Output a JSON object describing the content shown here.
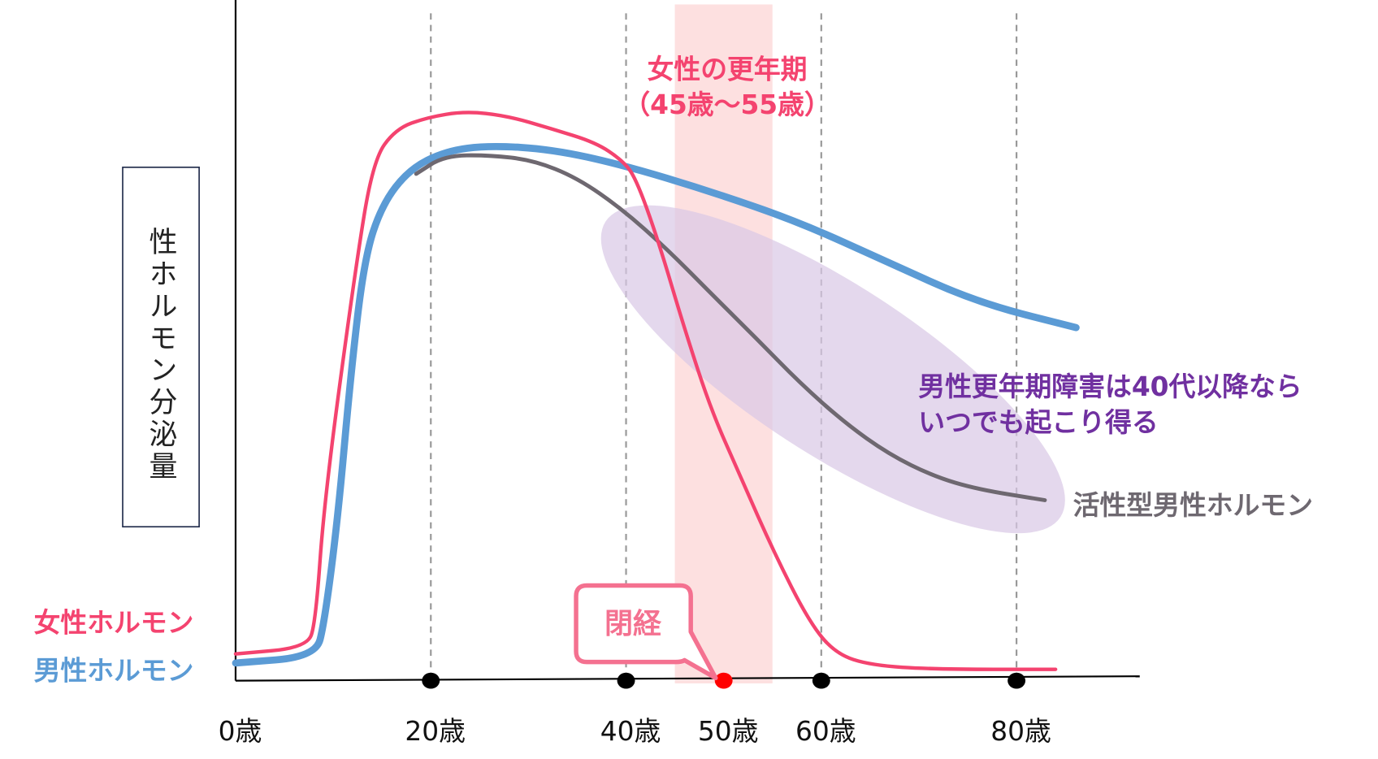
{
  "colors": {
    "female": "#f4436f",
    "male": "#5b9bd5",
    "active": "#6e6870",
    "band": "#fde0e0",
    "ellipse": "#d8c8e6",
    "note": "#7030a0",
    "menopause_dot": "#ff0000",
    "bubble": "#f47190"
  },
  "y_axis_label": "性ホルモン分泌量",
  "legend": {
    "female": "女性ホルモン",
    "male": "男性ホルモン",
    "active": "活性型男性ホルモン"
  },
  "menopause_period": {
    "title": "女性の更年期",
    "range": "（45歳〜55歳）",
    "start_age": 45,
    "end_age": 55
  },
  "menopause_bubble": {
    "label": "閉経",
    "age": 50
  },
  "male_note": {
    "line1": "男性更年期障害は40代以降なら",
    "line2": "いつでも起こり得る"
  },
  "chart_data": {
    "type": "line",
    "xlabel": "",
    "ylabel": "性ホルモン分泌量",
    "xlim": [
      0,
      92
    ],
    "ylim": [
      0,
      100
    ],
    "x_ticks": [
      {
        "age": 0,
        "label": "0歳"
      },
      {
        "age": 20,
        "label": "20歳"
      },
      {
        "age": 40,
        "label": "40歳"
      },
      {
        "age": 50,
        "label": "50歳"
      },
      {
        "age": 60,
        "label": "60歳"
      },
      {
        "age": 80,
        "label": "80歳"
      }
    ],
    "gridlines_at": [
      20,
      40,
      60,
      80
    ],
    "series": [
      {
        "name": "女性ホルモン",
        "key": "female",
        "points": [
          [
            0,
            4.7
          ],
          [
            7.3,
            5.8
          ],
          [
            8.2,
            10.2
          ],
          [
            9.1,
            32
          ],
          [
            12.3,
            72.7
          ],
          [
            14.1,
            91.4
          ],
          [
            16.4,
            96.9
          ],
          [
            19.6,
            98.9
          ],
          [
            23.5,
            100
          ],
          [
            27.8,
            99.2
          ],
          [
            32.4,
            96.9
          ],
          [
            36.9,
            94.5
          ],
          [
            39.6,
            91.4
          ],
          [
            41,
            88.3
          ],
          [
            43.3,
            77.3
          ],
          [
            46,
            61.7
          ],
          [
            48.7,
            47.6
          ],
          [
            51.5,
            36.7
          ],
          [
            55.1,
            22.7
          ],
          [
            58.8,
            10.2
          ],
          [
            61.5,
            4.7
          ],
          [
            65.1,
            2.7
          ],
          [
            71.5,
            2
          ],
          [
            84,
            2
          ]
        ]
      },
      {
        "name": "男性ホルモン",
        "key": "male",
        "points": [
          [
            0,
            3.1
          ],
          [
            8.2,
            4.2
          ],
          [
            9.1,
            10.2
          ],
          [
            10.5,
            28.9
          ],
          [
            11.8,
            53.9
          ],
          [
            13.2,
            74.2
          ],
          [
            15,
            83.6
          ],
          [
            17.8,
            89.8
          ],
          [
            21.5,
            93
          ],
          [
            25.95,
            94
          ],
          [
            32.4,
            93.3
          ],
          [
            39.6,
            90.6
          ],
          [
            48.7,
            85.9
          ],
          [
            57.8,
            80.5
          ],
          [
            66.9,
            73.4
          ],
          [
            76,
            66.4
          ],
          [
            86.1,
            62
          ]
        ]
      },
      {
        "name": "活性型男性ホルモン",
        "key": "active",
        "points": [
          [
            18.5,
            89
          ],
          [
            21.4,
            92.2
          ],
          [
            25.95,
            92.3
          ],
          [
            30.5,
            91.4
          ],
          [
            35,
            88.3
          ],
          [
            39.6,
            82.8
          ],
          [
            44.2,
            75.8
          ],
          [
            48.7,
            68
          ],
          [
            53.3,
            60.2
          ],
          [
            57.8,
            52.3
          ],
          [
            62.4,
            45.3
          ],
          [
            66.9,
            39.8
          ],
          [
            71.5,
            35.9
          ],
          [
            76,
            33.6
          ],
          [
            82.9,
            31.7
          ]
        ]
      }
    ]
  }
}
